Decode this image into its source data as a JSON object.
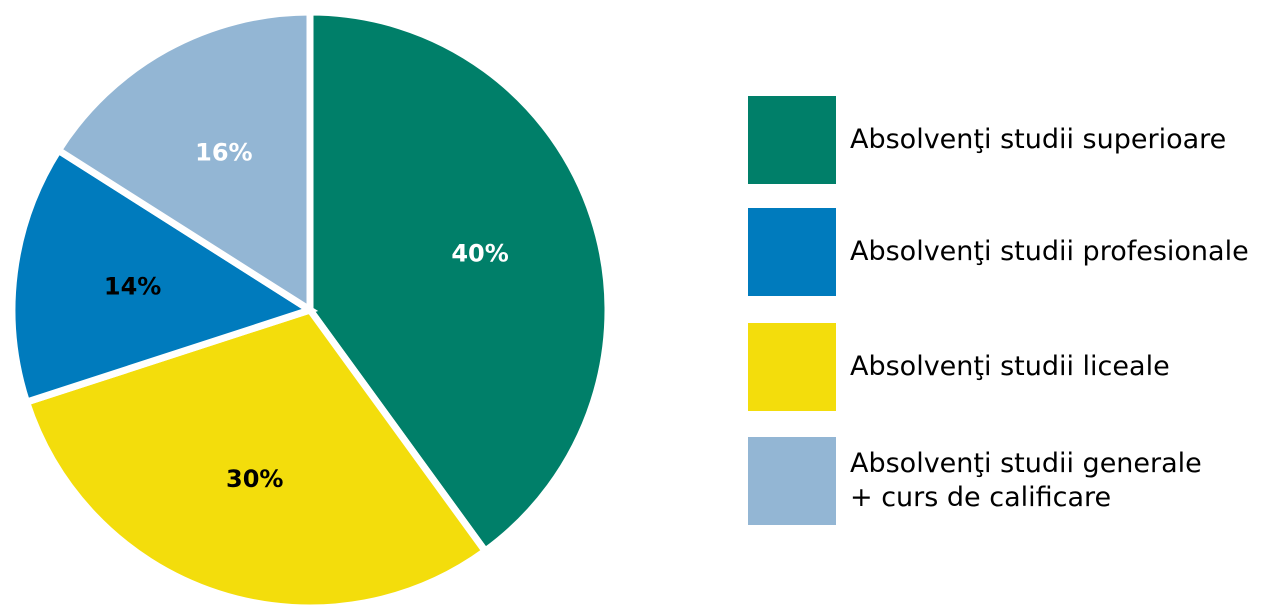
{
  "chart_data": {
    "type": "pie",
    "title": "",
    "slices": [
      {
        "label": "Absolvenţi studii superioare",
        "value": 40,
        "display": "40%",
        "color": "#007f69",
        "label_color": "#ffffff"
      },
      {
        "label": "Absolvenţi studii liceale",
        "value": 30,
        "display": "30%",
        "color": "#f3dd0c",
        "label_color": "#000000"
      },
      {
        "label": "Absolvenţi studii profesionale",
        "value": 14,
        "display": "14%",
        "color": "#007bbd",
        "label_color": "#000000"
      },
      {
        "label": "Absolvenţi studii generale + curs de calificare",
        "value": 16,
        "display": "16%",
        "color": "#93b6d4",
        "label_color": "#ffffff"
      }
    ],
    "legend_placement": "right"
  },
  "legend": {
    "items": [
      {
        "lines": [
          "Absolvenţi studii superioare"
        ],
        "color": "#007f69"
      },
      {
        "lines": [
          "Absolvenţi studii profesionale"
        ],
        "color": "#007bbd"
      },
      {
        "lines": [
          "Absolvenţi studii liceale"
        ],
        "color": "#f3dd0c"
      },
      {
        "lines": [
          "Absolvenţi studii generale",
          "+ curs de calificare"
        ],
        "color": "#93b6d4"
      }
    ]
  }
}
